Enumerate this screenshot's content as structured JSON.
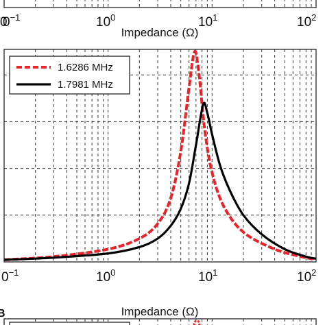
{
  "chart_data": [
    {
      "type": "line",
      "xscale": "log",
      "xlim": [
        0.1,
        100
      ],
      "grid": true,
      "xlabel": "Impedance (Ω)",
      "ylabel": "",
      "x_tick_labels": [
        {
          "base": "10",
          "exp": "−1",
          "display": "0",
          "exp_display": "−1"
        },
        {
          "base": "10",
          "exp": "0"
        },
        {
          "base": "10",
          "exp": "1"
        },
        {
          "base": "10",
          "exp": "2"
        }
      ],
      "partial_label": "0",
      "series": []
    },
    {
      "type": "line",
      "xscale": "log",
      "xlim": [
        0.1,
        100
      ],
      "ylim": [
        0,
        1
      ],
      "grid": true,
      "legend_position": "top-left",
      "xlabel": "Impedance (Ω)",
      "ylabel": "",
      "x_tick_labels": [
        {
          "base": "10",
          "exp": "−1",
          "display": "0",
          "exp_display": "−1"
        },
        {
          "base": "10",
          "exp": "0"
        },
        {
          "base": "10",
          "exp": "1"
        },
        {
          "base": "10",
          "exp": "2"
        }
      ],
      "series": [
        {
          "name": "1.6286 MHz",
          "color": "#e8232a",
          "style": "dashed",
          "x": [
            0.1,
            0.3,
            1,
            2,
            3,
            4,
            5,
            6,
            6.8,
            7.5,
            8.5,
            10,
            13,
            20,
            40,
            80,
            100
          ],
          "y": [
            0.01,
            0.025,
            0.06,
            0.11,
            0.18,
            0.3,
            0.52,
            0.82,
            0.99,
            0.88,
            0.62,
            0.42,
            0.26,
            0.14,
            0.06,
            0.02,
            0.015
          ]
        },
        {
          "name": "1.7981 MHz",
          "color": "#000000",
          "style": "solid",
          "x": [
            0.1,
            0.3,
            1,
            2,
            3,
            4,
            5,
            6,
            7,
            8.2,
            9,
            10,
            12,
            15,
            20,
            30,
            50,
            80,
            100
          ],
          "y": [
            0.01,
            0.02,
            0.04,
            0.07,
            0.11,
            0.17,
            0.25,
            0.37,
            0.55,
            0.74,
            0.7,
            0.6,
            0.45,
            0.33,
            0.22,
            0.13,
            0.06,
            0.025,
            0.015
          ]
        }
      ]
    },
    {
      "type": "line",
      "xscale": "log",
      "xlim": [
        0.1,
        100
      ],
      "grid": true,
      "series": []
    }
  ],
  "panel_letter": "B"
}
